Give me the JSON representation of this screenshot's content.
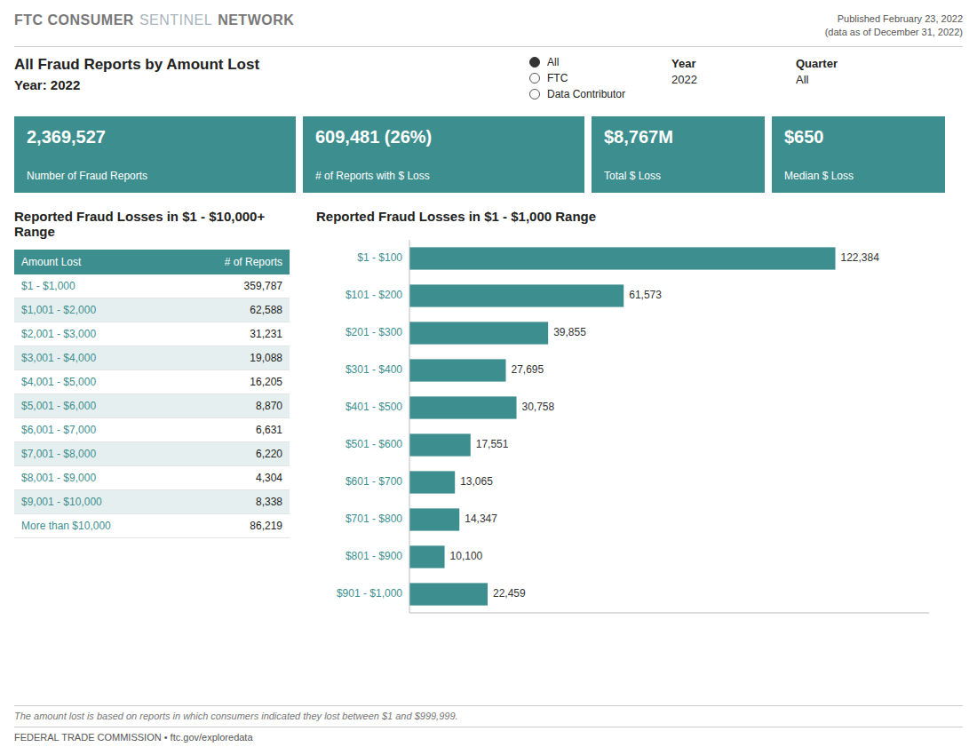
{
  "page": {
    "brand": [
      "FTC CONSUMER",
      "SENTINEL",
      "NETWORK"
    ],
    "published": [
      "Published February 23, 2022",
      "(data as of December 31, 2022)"
    ],
    "title": "All Fraud Reports by Amount Lost",
    "subtitle": "Year: 2022",
    "filters": [
      "All",
      "FTC",
      "Data Contributor"
    ],
    "year_label": "Year",
    "year_value": "2022",
    "quarter_label": "Quarter",
    "quarter_value": "All",
    "kpis": [
      {
        "value": "2,369,527",
        "label": "Number of Fraud Reports"
      },
      {
        "value": "609,481 (26%)",
        "label": "# of Reports with $ Loss"
      },
      {
        "value": "$8,767M",
        "label": "Total $ Loss"
      },
      {
        "value": "$650",
        "label": "Median $ Loss"
      }
    ],
    "kpi_color": "#3d8f8f",
    "footer_note": "The amount lost is based on reports in which consumers indicated they lost between $1 and $999,999.",
    "footer_credit": "FEDERAL TRADE COMMISSION • ftc.gov/exploredata"
  },
  "chart_data": [
    {
      "type": "bar",
      "orientation": "horizontal",
      "title": "Reported Fraud Losses in $1 - $1,000 Range",
      "categories": [
        "$1 - $100",
        "$101 - $200",
        "$201 - $300",
        "$301 - $400",
        "$401 - $500",
        "$501 - $600",
        "$601 - $700",
        "$701 - $800",
        "$801 - $900",
        "$901 - $1,000"
      ],
      "values": [
        122384,
        61573,
        39855,
        27695,
        30758,
        17551,
        13065,
        14347,
        10100,
        22459
      ],
      "value_labels": [
        "122,384",
        "61,573",
        "39,855",
        "27,695",
        "30,758",
        "17,551",
        "13,065",
        "14,347",
        "10,100",
        "22,459"
      ],
      "color": "#3d8f8f",
      "xlim": [
        0,
        149308.48
      ],
      "xticks": [],
      "grid": false,
      "data_labels": true,
      "tick_labels": "y"
    },
    {
      "type": "table",
      "title": "Reported Fraud Losses in $1 - $10,000+ Range",
      "x_label": "Amount Lost",
      "y_label": "# of Reports",
      "categories": [
        "$1 - $1,000",
        "$1,001 - $2,000",
        "$2,001 - $3,000",
        "$3,001 - $4,000",
        "$4,001 - $5,000",
        "$5,001 - $6,000",
        "$6,001 - $7,000",
        "$7,001 - $8,000",
        "$8,001 - $9,000",
        "$9,001 - $10,000",
        "More than $10,000"
      ],
      "values": [
        359787,
        62588,
        31231,
        19088,
        16205,
        8870,
        6631,
        6220,
        4304,
        8338,
        86219
      ],
      "value_labels": [
        "359,787",
        "62,588",
        "31,231",
        "19,088",
        "16,205",
        "8,870",
        "6,631",
        "6,220",
        "4,304",
        "8,338",
        "86,219"
      ],
      "color": "#3d8f8f"
    }
  ]
}
